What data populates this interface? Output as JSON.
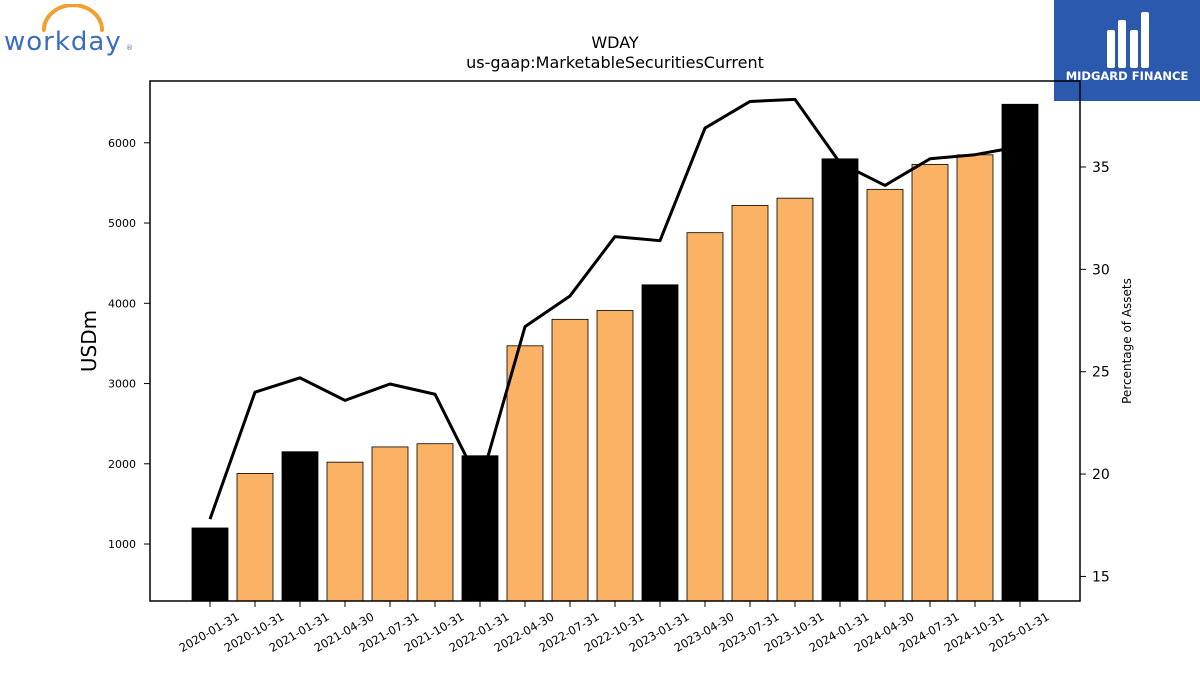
{
  "branding": {
    "left_logo_text": "workday",
    "right_logo_text": "MIDGARD FINANCE"
  },
  "colors": {
    "orange_bar": "#fbb264",
    "black_bar": "#000000",
    "line": "#000000",
    "workday_blue": "#3b6dbf",
    "workday_arc": "#f0a030",
    "midgard_bg": "#2b59ad"
  },
  "chart_data": {
    "type": "bar",
    "title": "WDAY",
    "subtitle": "us-gaap:MarketableSecuritiesCurrent",
    "ylabel": "USDm",
    "y2label": "Percentage of Assets",
    "categories": [
      "2020-01-31",
      "2020-10-31",
      "2021-01-31",
      "2021-04-30",
      "2021-07-31",
      "2021-10-31",
      "2022-01-31",
      "2022-04-30",
      "2022-07-31",
      "2022-10-31",
      "2023-01-31",
      "2023-04-30",
      "2023-07-31",
      "2023-10-31",
      "2024-01-31",
      "2024-04-30",
      "2024-07-31",
      "2024-10-31",
      "2025-01-31"
    ],
    "bar_colors": [
      "black",
      "orange",
      "black",
      "orange",
      "orange",
      "orange",
      "black",
      "orange",
      "orange",
      "orange",
      "black",
      "orange",
      "orange",
      "orange",
      "black",
      "orange",
      "orange",
      "orange",
      "black"
    ],
    "series": [
      {
        "axis": "left",
        "type": "bar",
        "values": [
          1200,
          1880,
          2150,
          2020,
          2210,
          2250,
          2100,
          3470,
          3800,
          3910,
          4230,
          4880,
          5220,
          5310,
          5800,
          5420,
          5730,
          5850,
          6480
        ]
      },
      {
        "axis": "right",
        "type": "line",
        "values": [
          17.8,
          24.0,
          24.7,
          23.6,
          24.4,
          23.9,
          19.5,
          27.2,
          28.7,
          31.6,
          31.4,
          36.9,
          38.2,
          38.3,
          35.2,
          34.1,
          35.4,
          35.6,
          36.0
        ]
      }
    ],
    "y_ticks": [
      1000,
      2000,
      3000,
      4000,
      5000,
      6000
    ],
    "y2_ticks": [
      15,
      20,
      25,
      30,
      35
    ],
    "ylim": [
      290,
      6770
    ],
    "y2lim": [
      13.8,
      39.2
    ],
    "grid": false,
    "legend": "none"
  }
}
